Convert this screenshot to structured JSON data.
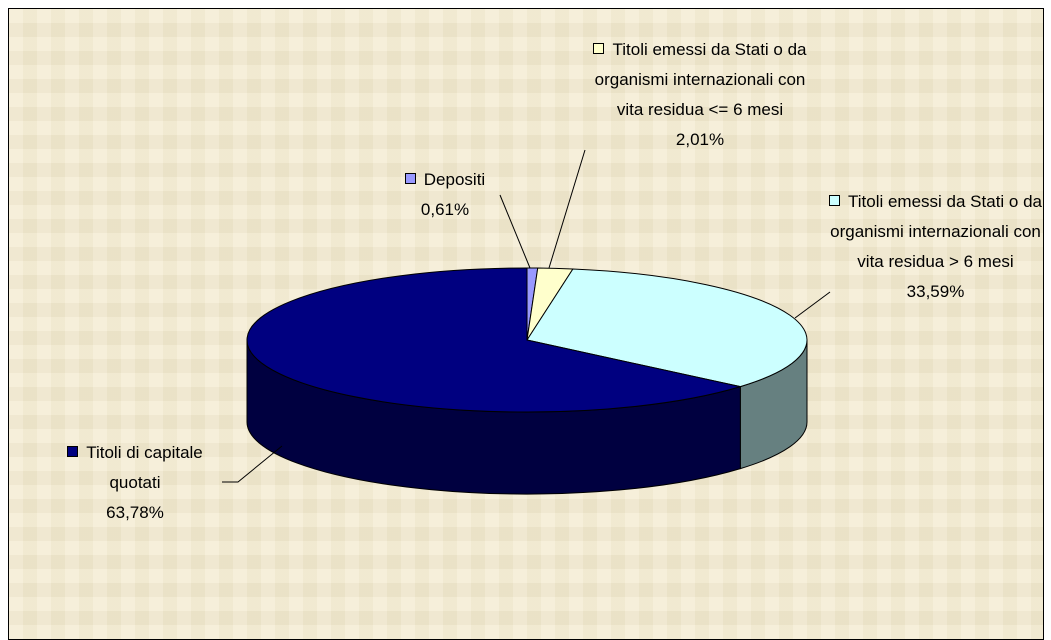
{
  "chart_data": {
    "type": "pie3d",
    "categories": [
      "Depositi",
      "Titoli emessi da Stati o da organismi internazionali con vita residua  <= 6 mesi",
      "Titoli emessi da Stati o da organismi internazionali con vita residua > 6 mesi",
      "Titoli di capitale quotati"
    ],
    "values": [
      0.61,
      2.01,
      33.59,
      63.78
    ],
    "value_labels": [
      "0,61%",
      "2,01%",
      "33,59%",
      "63,78%"
    ],
    "colors": [
      "#9999ff",
      "#ffffcc",
      "#ccffff",
      "#000080"
    ]
  }
}
